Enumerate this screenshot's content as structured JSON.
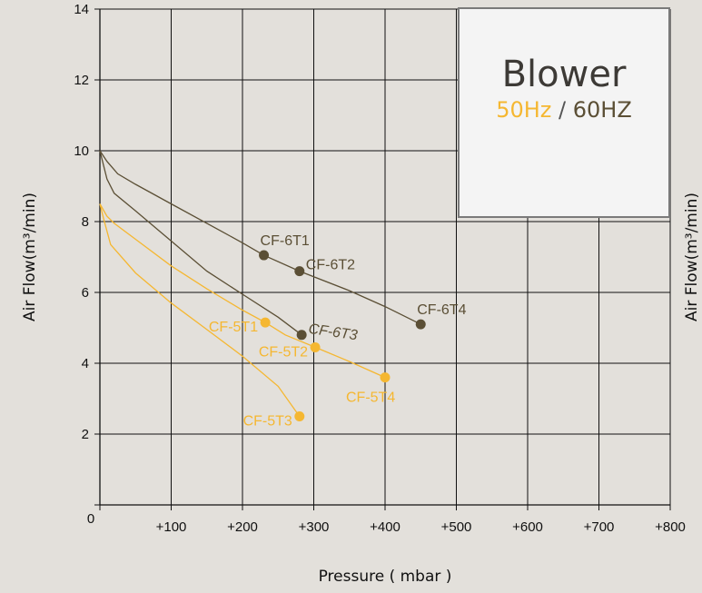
{
  "chart_data": {
    "type": "line",
    "xlabel": "Pressure ( mbar )",
    "ylabel_left": "Air Flow(m³/min)",
    "ylabel_right": "Air Flow(m³/min)",
    "xlim": [
      0,
      800
    ],
    "ylim": [
      0,
      14
    ],
    "x_ticks": [
      0,
      100,
      200,
      300,
      400,
      500,
      600,
      700,
      800
    ],
    "x_tick_labels": [
      "0",
      "+100",
      "+200",
      "+300",
      "+400",
      "+500",
      "+600",
      "+700",
      "+800"
    ],
    "y_ticks": [
      0,
      2,
      4,
      6,
      8,
      10,
      12,
      14
    ],
    "y_tick_labels": [
      "",
      "2",
      "4",
      "6",
      "8",
      "10",
      "12",
      "14"
    ],
    "grid": true,
    "colors": {
      "hz50": "#f5b731",
      "hz60": "#5b4f35"
    },
    "series": [
      {
        "color_key": "hz60",
        "x": [
          0,
          10,
          25,
          50,
          100,
          150,
          200,
          230,
          280,
          350,
          400,
          450
        ],
        "y": [
          10,
          9.7,
          9.35,
          9.05,
          8.5,
          7.95,
          7.4,
          7.05,
          6.6,
          6.05,
          5.6,
          5.1
        ]
      },
      {
        "color_key": "hz60",
        "x": [
          0,
          5,
          10,
          20,
          50,
          100,
          150,
          200,
          250,
          283
        ],
        "y": [
          10,
          9.6,
          9.2,
          8.8,
          8.3,
          7.45,
          6.6,
          5.95,
          5.3,
          4.8
        ]
      },
      {
        "color_key": "hz50",
        "x": [
          0,
          10,
          20,
          50,
          100,
          150,
          200,
          232,
          260,
          302,
          350,
          400
        ],
        "y": [
          8.5,
          8.15,
          7.95,
          7.5,
          6.75,
          6.1,
          5.5,
          5.15,
          4.8,
          4.45,
          4.05,
          3.6
        ]
      },
      {
        "color_key": "hz50",
        "x": [
          0,
          5,
          15,
          50,
          100,
          150,
          200,
          250,
          280
        ],
        "y": [
          8.5,
          8.1,
          7.35,
          6.55,
          5.7,
          4.95,
          4.2,
          3.35,
          2.5
        ]
      }
    ],
    "points": [
      {
        "label": "CF-6T1",
        "x": 230,
        "y": 7.05,
        "color_key": "hz60",
        "label_side": "above",
        "italic": false
      },
      {
        "label": "CF-6T2",
        "x": 280,
        "y": 6.6,
        "color_key": "hz60",
        "label_side": "right",
        "italic": false
      },
      {
        "label": "CF-6T3",
        "x": 283,
        "y": 4.8,
        "color_key": "hz60",
        "label_side": "right",
        "italic": true
      },
      {
        "label": "CF-6T4",
        "x": 450,
        "y": 5.1,
        "color_key": "hz60",
        "label_side": "above",
        "italic": false
      },
      {
        "label": "CF-5T1",
        "x": 232,
        "y": 5.15,
        "color_key": "hz50",
        "label_side": "left",
        "italic": false
      },
      {
        "label": "CF-5T2",
        "x": 302,
        "y": 4.45,
        "color_key": "hz50",
        "label_side": "left",
        "italic": false
      },
      {
        "label": "CF-5T3",
        "x": 280,
        "y": 2.5,
        "color_key": "hz50",
        "label_side": "left",
        "italic": false
      },
      {
        "label": "CF-5T4",
        "x": 400,
        "y": 3.6,
        "color_key": "hz50",
        "label_side": "below",
        "italic": false
      }
    ]
  },
  "legend": {
    "title": "Blower",
    "freq_50": "50Hz",
    "separator": " / ",
    "freq_60": "60HZ"
  }
}
